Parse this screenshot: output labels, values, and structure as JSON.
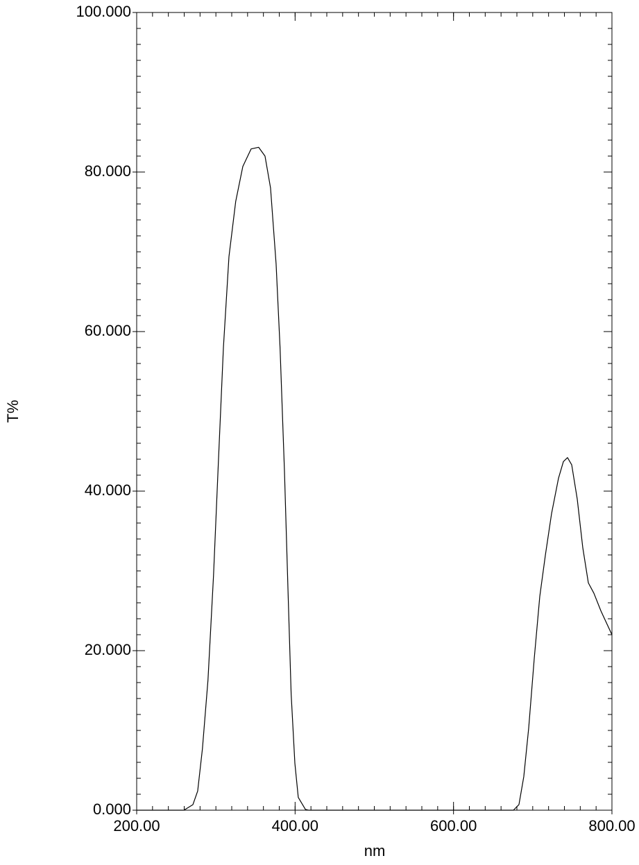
{
  "chart_data": {
    "type": "line",
    "xlabel": "nm",
    "ylabel": "T%",
    "xlim": [
      200,
      800
    ],
    "ylim": [
      0,
      100
    ],
    "xticks": [
      {
        "value": 200,
        "label": "200.00"
      },
      {
        "value": 400,
        "label": "400.00"
      },
      {
        "value": 600,
        "label": "600.00"
      },
      {
        "value": 800,
        "label": "800.00"
      }
    ],
    "yticks": [
      {
        "value": 0,
        "label": "0.000"
      },
      {
        "value": 20,
        "label": "20.000"
      },
      {
        "value": 40,
        "label": "40.000"
      },
      {
        "value": 60,
        "label": "60.000"
      },
      {
        "value": 80,
        "label": "80.000"
      },
      {
        "value": 100,
        "label": "100.000"
      }
    ],
    "x_minor_step": 20,
    "y_minor_step": 2,
    "series": [
      {
        "color": "#000000",
        "x": [
          200,
          259.6,
          271,
          277,
          283,
          290,
          297,
          303,
          309.5,
          316.5,
          325,
          334,
          344.5,
          354,
          362,
          369,
          376,
          381,
          386.6,
          391,
          395,
          399.7,
          404,
          413,
          417,
          675.6,
          682.6,
          688.7,
          694.9,
          701.9,
          708.9,
          716,
          723.8,
          732.5,
          738.7,
          743.9,
          749.2,
          756.2,
          763.2,
          770.2,
          777.2,
          786,
          793.9,
          800
        ],
        "values": [
          0,
          0,
          0.7,
          2.4,
          7.7,
          16.3,
          29.4,
          43.3,
          58,
          69.4,
          76.3,
          80.7,
          82.9,
          83.1,
          82,
          78,
          68.5,
          58,
          42.4,
          27.7,
          14.6,
          5.9,
          1.6,
          0.1,
          0,
          0,
          0.7,
          4.2,
          10.3,
          19,
          26.8,
          32,
          37.2,
          41.6,
          43.7,
          44.2,
          43.3,
          39,
          32.9,
          28.5,
          27.2,
          25,
          23.3,
          22
        ]
      }
    ]
  }
}
